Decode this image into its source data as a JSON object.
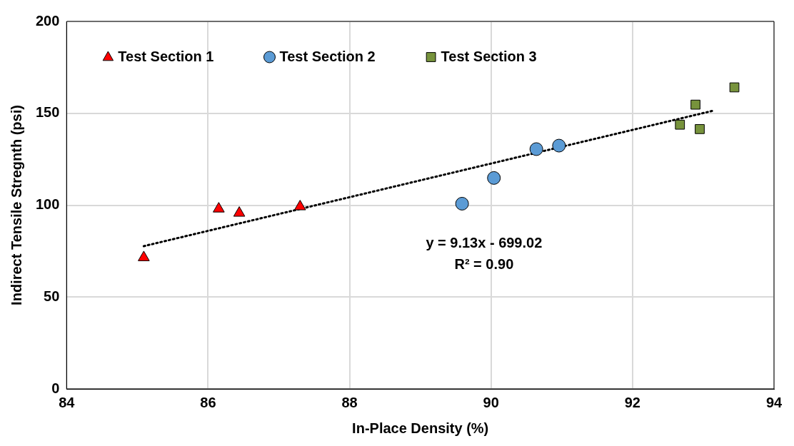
{
  "chart_data": {
    "type": "scatter",
    "xlabel": "In-Place Density (%)",
    "ylabel": "Indirect Tensile Stregnth (psi)",
    "xlim": [
      84,
      94
    ],
    "xticks": [
      84,
      86,
      88,
      90,
      92,
      94
    ],
    "ylim": [
      0,
      200
    ],
    "yticks": [
      0,
      50,
      100,
      150,
      200
    ],
    "grid": true,
    "legend": "top left",
    "series": [
      {
        "name": "Test Section 1",
        "color": "#ff0000",
        "marker": "triangle",
        "x": [
          85.09,
          86.15,
          86.44,
          87.3
        ],
        "values": [
          71.5,
          98,
          95.7,
          99.2
        ]
      },
      {
        "name": "Test Section 2",
        "color": "#5b9bd5",
        "marker": "circle",
        "x": [
          89.59,
          90.04,
          90.64,
          90.96
        ],
        "values": [
          100.8,
          114.8,
          130.5,
          132.4
        ]
      },
      {
        "name": "Test Section 3",
        "color": "#77933c",
        "marker": "square",
        "x": [
          92.67,
          92.89,
          92.95,
          93.44
        ],
        "values": [
          143.8,
          154.7,
          141.4,
          164.1
        ]
      },
      {
        "type": "line",
        "color": "#000000",
        "marker": "none",
        "line_style": "dotted",
        "x": [
          85.09,
          93.14
        ],
        "values": [
          77.7,
          151.4
        ]
      }
    ],
    "annotations": [
      "y = 9.13x - 699.02",
      "R² = 0.90"
    ]
  }
}
